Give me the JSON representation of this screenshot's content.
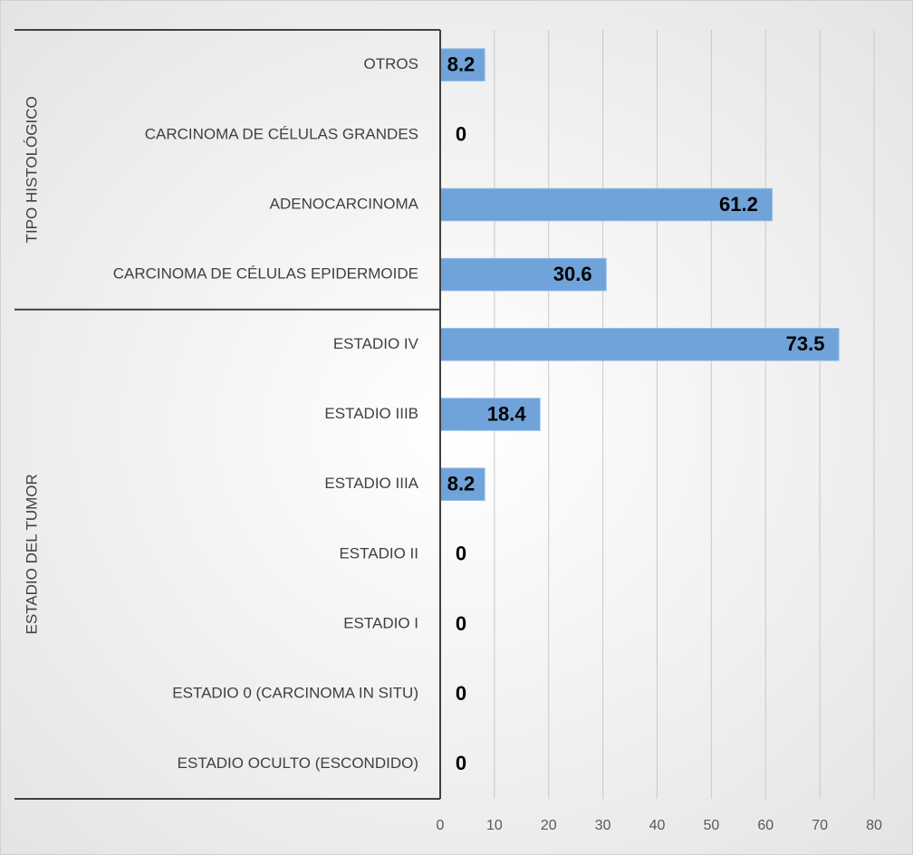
{
  "chart_data": {
    "type": "bar",
    "orientation": "horizontal",
    "groups": [
      {
        "label": "TIPO HISTOLÓGICO",
        "categories": [
          "OTROS",
          "CARCINOMA DE CÉLULAS GRANDES",
          "ADENOCARCINOMA",
          "CARCINOMA DE CÉLULAS EPIDERMOIDE"
        ],
        "values": [
          8.2,
          0,
          61.2,
          30.6
        ]
      },
      {
        "label": "ESTADIO DEL TUMOR",
        "categories": [
          "ESTADIO IV",
          "ESTADIO IIIB",
          "ESTADIO IIIA",
          "ESTADIO II",
          "ESTADIO I",
          "ESTADIO 0 (CARCINOMA IN SITU)",
          "ESTADIO OCULTO (ESCONDIDO)"
        ],
        "values": [
          73.5,
          18.4,
          8.2,
          0,
          0,
          0,
          0
        ]
      }
    ],
    "color": "#6fa3da",
    "xlim": [
      0,
      80
    ],
    "xticks": [
      0,
      10,
      20,
      30,
      40,
      50,
      60,
      70,
      80
    ],
    "grid": true
  }
}
